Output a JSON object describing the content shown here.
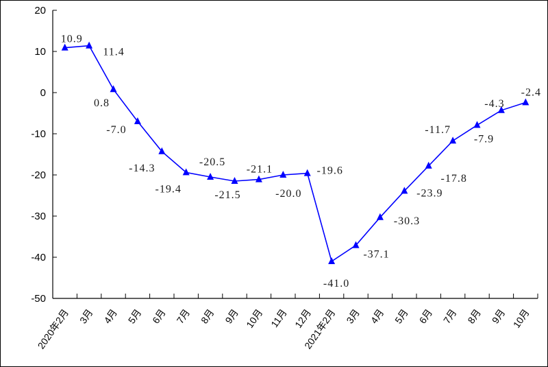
{
  "chart_data": {
    "type": "line",
    "title": "",
    "xlabel": "",
    "ylabel": "",
    "ylim": [
      -50,
      20
    ],
    "yticks": [
      20,
      10,
      0,
      -10,
      -20,
      -30,
      -40,
      -50
    ],
    "grid": false,
    "categories": [
      "2020年2月",
      "3月",
      "4月",
      "5月",
      "6月",
      "7月",
      "8月",
      "9月",
      "10月",
      "11月",
      "12月",
      "2021年2月",
      "3月",
      "4月",
      "5月",
      "6月",
      "7月",
      "8月",
      "9月",
      "10月"
    ],
    "series": [
      {
        "name": "",
        "color": "#0000ff",
        "marker": "triangle",
        "values": [
          10.9,
          11.4,
          0.8,
          -7.0,
          -14.3,
          -19.4,
          -20.5,
          -21.5,
          -21.1,
          -20.0,
          -19.6,
          -41.0,
          -37.1,
          -30.3,
          -23.9,
          -17.8,
          -11.7,
          -7.9,
          -4.3,
          -2.4
        ],
        "labels": [
          "10.9",
          "11.4",
          "0.8",
          "-7.0",
          "-14.3",
          "-19.4",
          "-20.5",
          "-21.5",
          "-21.1",
          "-20.0",
          "-19.6",
          "-41.0",
          "-37.1",
          "-30.3",
          "-23.9",
          "-17.8",
          "-11.7",
          "-7.9",
          "-4.3",
          "-2.4"
        ]
      }
    ]
  }
}
